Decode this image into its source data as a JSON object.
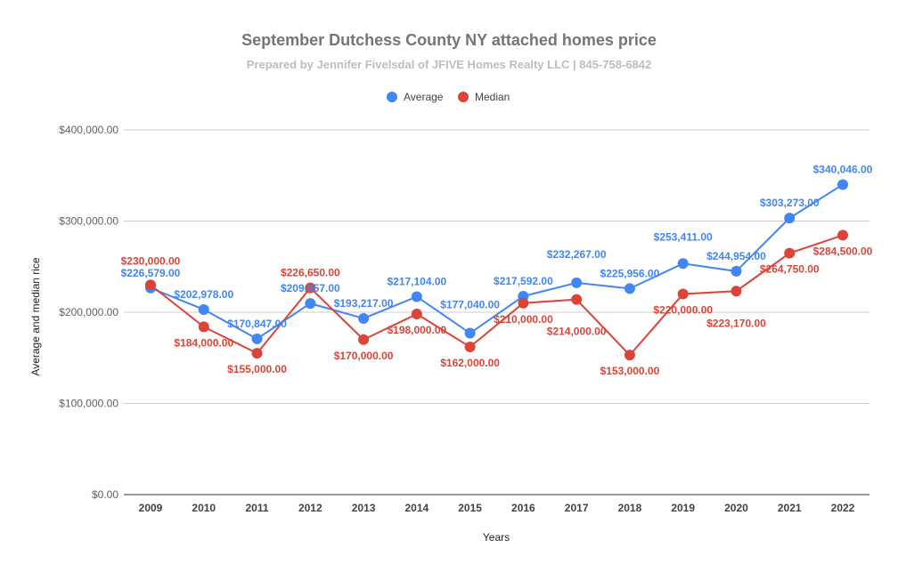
{
  "chart_data": {
    "type": "line",
    "title": "September Dutchess County NY attached  homes price",
    "subtitle": "Prepared by Jennifer Fivelsdal of JFIVE Homes Realty LLC | 845-758-6842",
    "xlabel": "Years",
    "ylabel": "Average and median rice",
    "categories": [
      "2009",
      "2010",
      "2011",
      "2012",
      "2013",
      "2014",
      "2015",
      "2016",
      "2017",
      "2018",
      "2019",
      "2020",
      "2021",
      "2022"
    ],
    "ylim": [
      0,
      400000
    ],
    "yticks": [
      "$0.00",
      "$100,000.00",
      "$200,000.00",
      "$300,000.00",
      "$400,000.00"
    ],
    "ytick_values": [
      0,
      100000,
      200000,
      300000,
      400000
    ],
    "grid": true,
    "legend_position": "top",
    "series": [
      {
        "name": "Average",
        "color": "#4285f4",
        "values": [
          226579,
          202978,
          170847,
          209657,
          193217,
          217104,
          177040,
          217592,
          232267,
          225956,
          253411,
          244954,
          303273,
          340046
        ],
        "labels": [
          "$226,579.00",
          "$202,978.00",
          "$170,847.00",
          "$209,657.00",
          "$193,217.00",
          "$217,104.00",
          "$177,040.00",
          "$217,592.00",
          "$232,267.00",
          "$225,956.00",
          "$253,411.00",
          "$244,954.00",
          "$303,273.00",
          "$340,046.00"
        ]
      },
      {
        "name": "Median",
        "color": "#db4437",
        "values": [
          230000,
          184000,
          155000,
          226650,
          170000,
          198000,
          162000,
          210000,
          214000,
          153000,
          220000,
          223170,
          264750,
          284500
        ],
        "labels": [
          "$230,000.00",
          "$184,000.00",
          "$155,000.00",
          "$226,650.00",
          "$170,000.00",
          "$198,000.00",
          "$162,000.00",
          "$210,000.00",
          "$214,000.00",
          "$153,000.00",
          "$220,000.00",
          "$223,170.00",
          "$264,750.00",
          "$284,500.00"
        ]
      }
    ]
  }
}
